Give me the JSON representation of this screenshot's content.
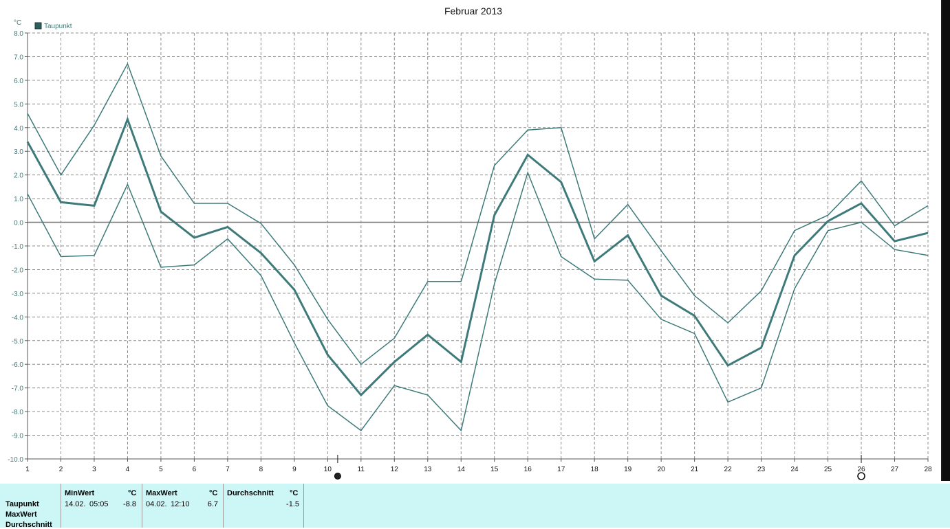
{
  "chart_data": {
    "type": "line",
    "title": "Februar 2013",
    "ylabel": "°C",
    "legend": {
      "label": "Taupunkt",
      "color": "#3e7a7a",
      "placement": "top-left"
    },
    "ylim": [
      -10,
      8
    ],
    "yticks": [
      "8.0",
      "7.0",
      "6.0",
      "5.0",
      "4.0",
      "3.0",
      "2.0",
      "1.0",
      "0.0",
      "-1.0",
      "-2.0",
      "-3.0",
      "-4.0",
      "-5.0",
      "-6.0",
      "-7.0",
      "-8.0",
      "-9.0",
      "-10.0"
    ],
    "xlim": [
      1,
      28
    ],
    "x": [
      1,
      2,
      3,
      4,
      5,
      6,
      7,
      8,
      9,
      10,
      11,
      12,
      13,
      14,
      15,
      16,
      17,
      18,
      19,
      20,
      21,
      22,
      23,
      24,
      25,
      26,
      27,
      28
    ],
    "xtick_labels": [
      "1",
      "2",
      "3",
      "4",
      "5",
      "6",
      "7",
      "8",
      "9",
      "10",
      "11",
      "12",
      "13",
      "14",
      "15",
      "16",
      "17",
      "18",
      "19",
      "20",
      "21",
      "22",
      "23",
      "24",
      "25",
      "26",
      "27",
      "28"
    ],
    "grid": true,
    "series": [
      {
        "name": "Taupunkt",
        "role": "max",
        "values": [
          4.6,
          2.0,
          4.1,
          6.7,
          2.8,
          0.8,
          0.8,
          -0.05,
          -1.8,
          -4.1,
          -6.0,
          -4.9,
          -2.5,
          -2.5,
          2.4,
          3.9,
          4.0,
          -0.7,
          0.75,
          -1.2,
          -3.1,
          -4.25,
          -2.9,
          -0.35,
          0.3,
          1.75,
          -0.15,
          0.7
        ]
      },
      {
        "name": "Taupunkt",
        "role": "avg",
        "values": [
          3.4,
          0.85,
          0.7,
          4.35,
          0.45,
          -0.65,
          -0.2,
          -1.3,
          -2.85,
          -5.6,
          -7.3,
          -5.9,
          -4.75,
          -5.9,
          0.3,
          2.85,
          1.7,
          -1.65,
          -0.55,
          -3.1,
          -3.95,
          -6.05,
          -5.3,
          -1.4,
          0.05,
          0.8,
          -0.8,
          -0.45
        ]
      },
      {
        "name": "Taupunkt",
        "role": "min",
        "values": [
          1.2,
          -1.45,
          -1.4,
          1.6,
          -1.9,
          -1.8,
          -0.7,
          -2.25,
          -5.1,
          -7.75,
          -8.8,
          -6.9,
          -7.3,
          -8.8,
          -2.6,
          2.1,
          -1.45,
          -2.4,
          -2.45,
          -4.1,
          -4.7,
          -7.6,
          -7.0,
          -2.8,
          -0.35,
          0.0,
          -1.15,
          -1.4
        ]
      }
    ],
    "markers": [
      {
        "x": 10.3,
        "symbol": "full-moon"
      },
      {
        "x": 26.0,
        "symbol": "new-moon"
      }
    ],
    "color": "#3e7a7a"
  },
  "summary": {
    "row_labels": [
      "Taupunkt",
      "MaxWert",
      "Durchschnitt"
    ],
    "columns": [
      {
        "header": "MinWert",
        "unit": "°C",
        "date": "14.02.",
        "time": "05:05",
        "value": "-8.8"
      },
      {
        "header": "MaxWert",
        "unit": "°C",
        "date": "04.02.",
        "time": "12:10",
        "value": "6.7"
      },
      {
        "header": "Durchschnitt",
        "unit": "°C",
        "value": "-1.5"
      }
    ]
  }
}
